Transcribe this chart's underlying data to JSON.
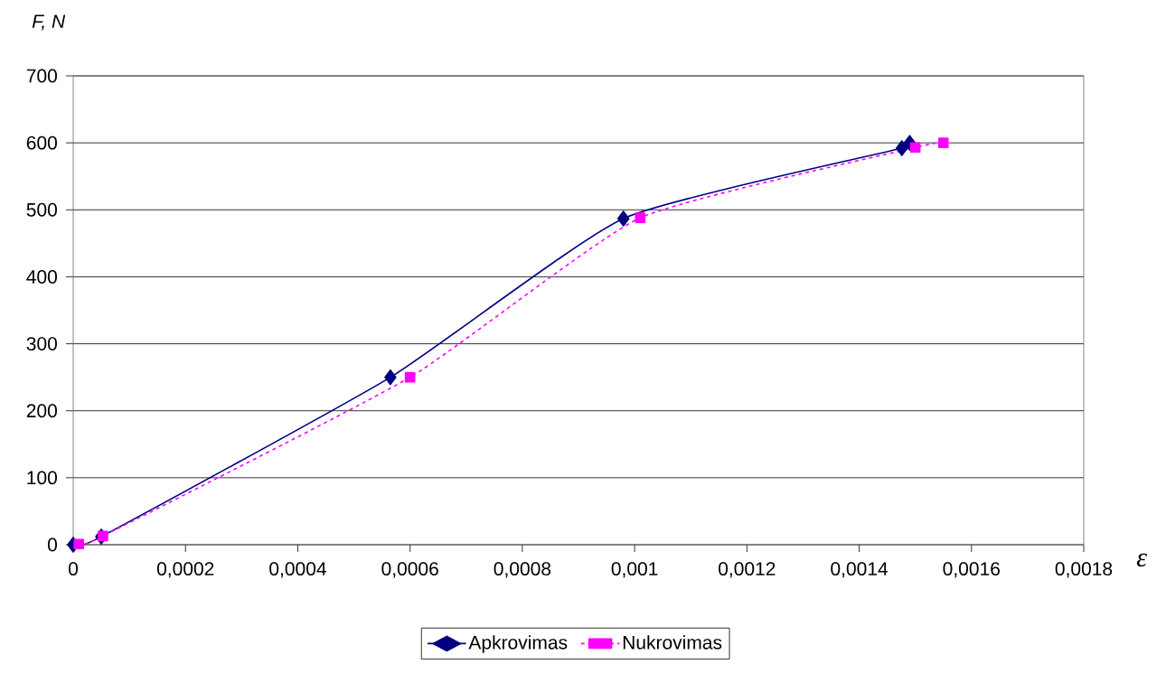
{
  "chart_data": {
    "type": "line",
    "ylabel": "F, N",
    "xlabel": "ε",
    "xlim": [
      0,
      0.0018
    ],
    "ylim": [
      0,
      700
    ],
    "xticks": [
      0,
      {
        "value": 0.0002,
        "label": "0,0002"
      },
      {
        "value": 0.0004,
        "label": "0,0004"
      },
      {
        "value": 0.0006,
        "label": "0,0006"
      },
      {
        "value": 0.0008,
        "label": "0,0008"
      },
      {
        "value": 0.001,
        "label": "0,001"
      },
      {
        "value": 0.0012,
        "label": "0,0012"
      },
      {
        "value": 0.0014,
        "label": "0,0014"
      },
      {
        "value": 0.0016,
        "label": "0,0016"
      },
      {
        "value": 0.0018,
        "label": "0,0018"
      }
    ],
    "yticks": [
      0,
      100,
      200,
      300,
      400,
      500,
      600,
      700
    ],
    "grid": "y",
    "legend": "bottom",
    "series": [
      {
        "name": "Apkrovimas",
        "color": "#000080",
        "marker": "diamond",
        "line_style": "solid",
        "x": [
          0,
          5e-05,
          0.000565,
          0.00098,
          0.001476,
          0.00149
        ],
        "values": [
          0,
          12,
          250,
          487,
          592,
          600
        ]
      },
      {
        "name": "Nukrovimas",
        "color": "#ff00ff",
        "marker": "square",
        "line_style": "dashed",
        "x": [
          1e-05,
          5.3e-05,
          0.0006,
          0.00101,
          0.0015,
          0.00155
        ],
        "values": [
          1,
          13,
          250,
          488,
          593,
          600
        ]
      }
    ]
  }
}
